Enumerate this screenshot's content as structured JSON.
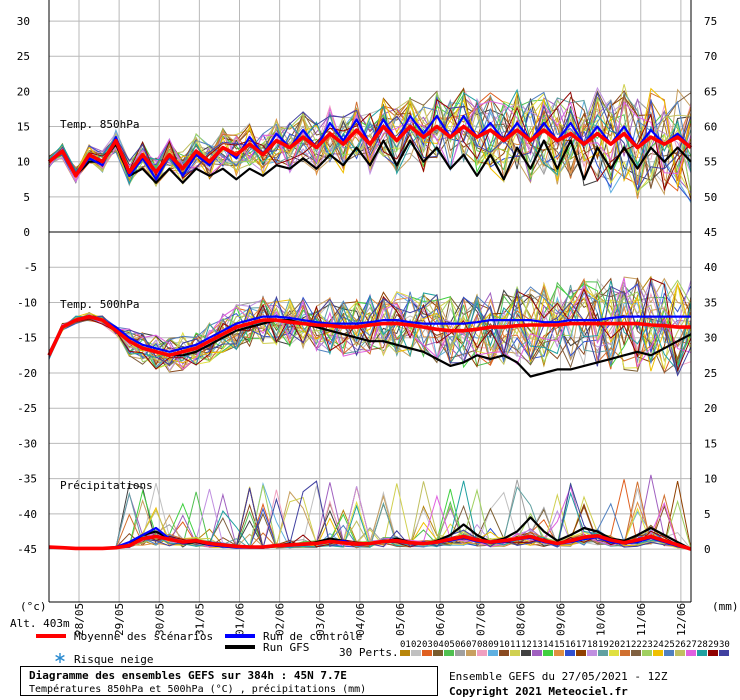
{
  "header": {
    "alt": "Alt. 403m",
    "unit_left": "(°c)",
    "unit_right": "(mm)"
  },
  "legend": {
    "mean": "Moyenne des scénarios",
    "control": "Run de contrôle",
    "gfs": "Run GFS",
    "snow": "Risque neige",
    "perts": "30 Perts.",
    "pert_numbers": [
      "01",
      "02",
      "03",
      "04",
      "05",
      "06",
      "07",
      "08",
      "09",
      "10",
      "11",
      "12",
      "13",
      "14",
      "15",
      "16",
      "17",
      "18",
      "19",
      "20",
      "21",
      "22",
      "23",
      "24",
      "25",
      "26",
      "27",
      "28",
      "29",
      "30"
    ],
    "pert_colors": [
      "#b8860b",
      "#c0c0c0",
      "#e06020",
      "#7a5c2e",
      "#50c050",
      "#a0a0a0",
      "#c8a060",
      "#f0a0c0",
      "#60b0e0",
      "#8a4a20",
      "#d0d050",
      "#404040",
      "#a060c0",
      "#40d040",
      "#e09040",
      "#3050d0",
      "#904000",
      "#c090e0",
      "#60a0a0",
      "#e0e040",
      "#d07030",
      "#806040",
      "#a0d060",
      "#f0c000",
      "#5080c0",
      "#c0c060",
      "#e060e0",
      "#20a0a0",
      "#900000",
      "#4040a0"
    ],
    "colors": {
      "mean": "#ff0000",
      "control": "#0000ff",
      "gfs": "#000000"
    }
  },
  "footer": {
    "title": "Diagramme des ensembles GEFS sur 384h : 45N 7.7E",
    "subtitle": "Températures 850hPa et 500hPa (°C) , précipitations (mm)",
    "ensemble": "Ensemble GEFS du 27/05/2021 - 12Z",
    "copyright": "Copyright 2021 Meteociel.fr"
  },
  "chart_data": {
    "type": "line",
    "x_labels": [
      "28/05",
      "29/05",
      "30/05",
      "31/05",
      "01/06",
      "02/06",
      "03/06",
      "04/06",
      "05/06",
      "06/06",
      "07/06",
      "08/06",
      "09/06",
      "10/06",
      "11/06",
      "12/06"
    ],
    "panels": [
      {
        "name": "Temp. 850hPa",
        "left_ticks": [
          30,
          25,
          20,
          15,
          10,
          5,
          0
        ],
        "right_ticks": [
          75,
          70,
          65,
          60,
          55,
          50,
          45
        ],
        "ylim": [
          0,
          33
        ],
        "mean": [
          10,
          11.5,
          8,
          11,
          10,
          13,
          8.5,
          11,
          8.5,
          11,
          9,
          11.5,
          10,
          12,
          11,
          12.5,
          11,
          13,
          12,
          13.5,
          12,
          14,
          12.5,
          14.5,
          12.5,
          15,
          13,
          15,
          13.5,
          15,
          13.5,
          15,
          13.5,
          14.5,
          13,
          14.5,
          13,
          14.5,
          13,
          14,
          12.5,
          14,
          12.5,
          14,
          12,
          13.5,
          12.5,
          13.5,
          12
        ],
        "control": [
          10,
          11.5,
          8,
          10.5,
          9.5,
          13.5,
          8,
          10.5,
          7.5,
          11,
          8,
          11,
          9.5,
          12,
          10.5,
          13.5,
          11,
          14,
          12,
          14.5,
          12,
          15.5,
          13,
          16,
          12.5,
          16,
          13,
          16.5,
          14,
          16.5,
          13.5,
          16.5,
          13.5,
          15.5,
          13,
          15.5,
          13,
          15.5,
          13,
          15.5,
          12.5,
          15,
          12.5,
          15,
          12,
          14.5,
          12.5,
          14,
          12
        ],
        "gfs": [
          10,
          11.5,
          8,
          10,
          10,
          12.5,
          8,
          9,
          7,
          9,
          7,
          9,
          8,
          9,
          7.5,
          9,
          8,
          9.5,
          9,
          10.5,
          9,
          11,
          9.5,
          12,
          9.5,
          13,
          9.5,
          13,
          10,
          12,
          9,
          11,
          8,
          11,
          7.5,
          12,
          9,
          13,
          9,
          13,
          7.5,
          12,
          9,
          12,
          9,
          12,
          10,
          12,
          10
        ]
      },
      {
        "name": "Temp. 500hPa",
        "left_ticks": [
          -5,
          -10,
          -15,
          -20,
          -25,
          -30,
          -35,
          -40,
          -45
        ],
        "right_ticks": [
          40,
          35,
          30,
          25,
          20,
          15,
          10,
          5,
          0
        ],
        "ylim": [
          -52.5,
          0
        ],
        "mean": [
          -17.5,
          -13.5,
          -12.5,
          -12,
          -12.5,
          -14,
          -15.5,
          -16.5,
          -17,
          -17.5,
          -17,
          -16.5,
          -15.5,
          -14.5,
          -13.5,
          -13,
          -12.5,
          -12.5,
          -12.8,
          -13,
          -13.2,
          -13.3,
          -13.5,
          -13.5,
          -13.2,
          -13,
          -13,
          -13.2,
          -13.5,
          -13.8,
          -14,
          -14,
          -13.8,
          -13.5,
          -13.5,
          -13.3,
          -13.2,
          -13.2,
          -13.2,
          -13,
          -13,
          -13,
          -13,
          -13,
          -13,
          -13.2,
          -13.3,
          -13.5,
          -13.5
        ],
        "control": [
          -17.5,
          -13.5,
          -12.5,
          -12,
          -12.5,
          -13.5,
          -15,
          -16,
          -16.5,
          -17,
          -16.5,
          -16,
          -15,
          -14,
          -13,
          -12.5,
          -12,
          -12,
          -12.2,
          -12.5,
          -12.8,
          -13,
          -13,
          -13,
          -12.8,
          -12.5,
          -12.5,
          -12.8,
          -13,
          -13,
          -13,
          -13,
          -12.8,
          -12.5,
          -12.5,
          -12.5,
          -12.5,
          -12.8,
          -12.8,
          -12.5,
          -12.5,
          -12.5,
          -12.2,
          -12,
          -12,
          -12,
          -12,
          -12,
          -12
        ],
        "gfs": [
          -17.5,
          -13.5,
          -12.5,
          -12,
          -12.5,
          -14,
          -15.5,
          -16.5,
          -17,
          -17.5,
          -17.5,
          -17,
          -16,
          -15,
          -14,
          -13.5,
          -13,
          -12.5,
          -12.5,
          -13,
          -13.5,
          -14,
          -14.5,
          -15,
          -15.5,
          -15.5,
          -16,
          -16.5,
          -17,
          -18,
          -19,
          -18.5,
          -17.5,
          -18,
          -17.5,
          -18.5,
          -20.5,
          -20,
          -19.5,
          -19.5,
          -19,
          -18.5,
          -18,
          -17.5,
          -17,
          -17.5,
          -16.5,
          -15.5,
          -14.5
        ]
      },
      {
        "name": "Précipitations",
        "right_ticks": [
          20,
          15,
          10,
          5,
          0
        ],
        "ylim": [
          0,
          20
        ],
        "mean": [
          0.3,
          0.2,
          0.1,
          0.1,
          0.1,
          0.2,
          0.5,
          1.5,
          1.8,
          1.4,
          1,
          1.2,
          0.8,
          0.6,
          0.4,
          0.3,
          0.3,
          0.5,
          0.6,
          0.7,
          0.8,
          1.1,
          0.9,
          0.7,
          0.8,
          1.1,
          1.2,
          0.9,
          0.8,
          1,
          1.4,
          1.8,
          1.3,
          1,
          1.2,
          1.5,
          1.8,
          1.2,
          0.8,
          1.2,
          1.7,
          1.9,
          1.3,
          0.9,
          1.3,
          1.8,
          1.2,
          0.6,
          0
        ],
        "control": [
          0.3,
          0.2,
          0.1,
          0.1,
          0.1,
          0.3,
          1,
          2,
          3,
          1.5,
          0.8,
          1.2,
          0.6,
          0.4,
          0.2,
          0.2,
          0.2,
          0.4,
          0.5,
          0.6,
          0.8,
          1,
          1.2,
          0.6,
          0.9,
          1,
          1.1,
          0.8,
          0.7,
          0.9,
          1.2,
          1.6,
          1.1,
          0.9,
          1,
          1.4,
          1.6,
          1,
          0.7,
          1,
          1.4,
          1.7,
          1,
          0.8,
          1,
          1.6,
          1,
          0.4,
          0
        ],
        "gfs": [
          0.3,
          0.2,
          0.1,
          0.1,
          0.1,
          0.2,
          0.6,
          2,
          2.5,
          1.5,
          0.8,
          1,
          0.6,
          0.4,
          0.3,
          0.3,
          0.2,
          0.5,
          0.8,
          0.6,
          1,
          1.5,
          1.2,
          0.6,
          0.8,
          1,
          1.5,
          1,
          0.7,
          1.2,
          2,
          3.5,
          2,
          1,
          1.5,
          2.5,
          4.5,
          2.5,
          1.2,
          2,
          3,
          2.5,
          1.5,
          1.2,
          2,
          3,
          2,
          1,
          0
        ]
      }
    ]
  }
}
